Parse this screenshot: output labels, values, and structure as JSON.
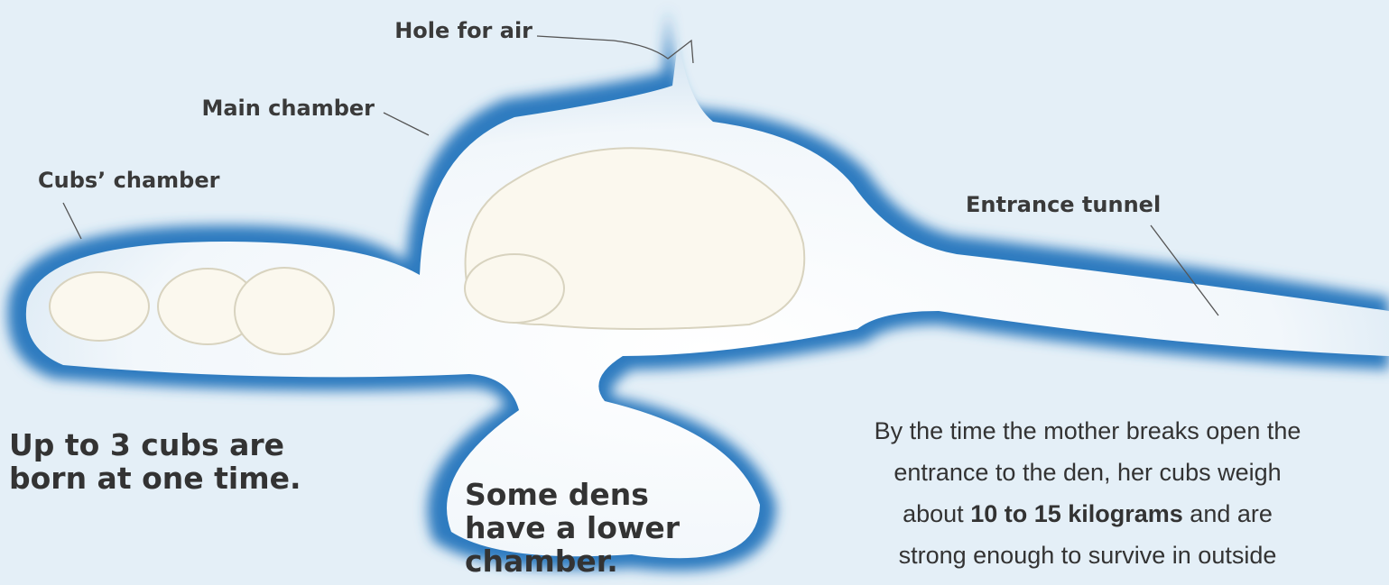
{
  "labels": [
    "Hole for air",
    "Main chamber",
    "Cubs’ chamber",
    "Entrance tunnel"
  ],
  "cubs_caption": {
    "lines": [
      "Up to 3 cubs are",
      "born at one time."
    ]
  },
  "lower_caption": {
    "lines": [
      "Some dens",
      "have a lower",
      "chamber."
    ]
  },
  "paragraph": {
    "lines": [
      [
        {
          "text": "By the time the mother breaks open the"
        }
      ],
      [
        {
          "text": "entrance to the den, her cubs weigh"
        }
      ],
      [
        {
          "text": "about "
        },
        {
          "text": "10 to 15 kilograms",
          "bold": true
        },
        {
          "text": " and are"
        }
      ],
      [
        {
          "text": "strong enough to survive in outside"
        }
      ]
    ]
  }
}
